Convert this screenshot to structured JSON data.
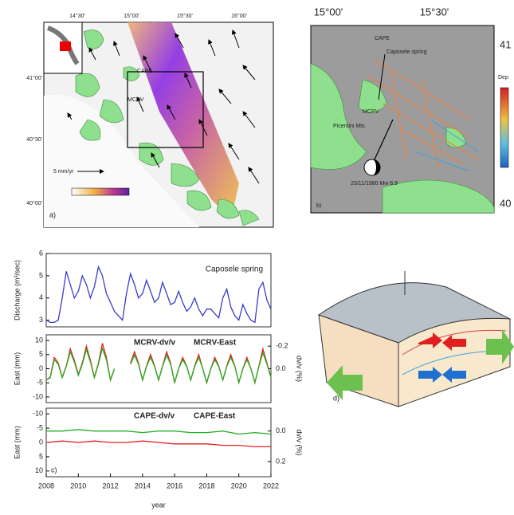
{
  "map_a": {
    "lon_labels": [
      "14°30'",
      "15°00'",
      "15°30'",
      "16°00'"
    ],
    "lat_labels": [
      "41°00'",
      "40°30'",
      "40°00'"
    ],
    "stations": [
      "CAPE",
      "MCRV"
    ],
    "scale": "5 mm/yr",
    "panel_label": "a)"
  },
  "map_b": {
    "lon_labels": [
      "15°00'",
      "15°30'"
    ],
    "lat_labels": [
      "41",
      "40"
    ],
    "stations": [
      "CAPE",
      "MCRV"
    ],
    "spring": "Caposele spring",
    "mountains": "Picentini Mts.",
    "event": "23/11/1980 Mw 6.9",
    "colorbar_label": "Dep",
    "panel_label": "b)"
  },
  "diagram_d": {
    "panel_label": "d)"
  },
  "chart_data": [
    {
      "type": "line",
      "ylabel": "Discharge (m³/sec)",
      "xlim": [
        2008,
        2022
      ],
      "ylim": [
        2.7,
        6.0
      ],
      "yticks": [
        3,
        4,
        5,
        6
      ],
      "x": [
        2008,
        2008.25,
        2008.5,
        2008.75,
        2009,
        2009.25,
        2009.5,
        2009.75,
        2010,
        2010.25,
        2010.5,
        2010.75,
        2011,
        2011.25,
        2011.5,
        2011.75,
        2012,
        2012.25,
        2012.5,
        2012.75,
        2013,
        2013.25,
        2013.5,
        2013.75,
        2014,
        2014.25,
        2014.5,
        2014.75,
        2015,
        2015.25,
        2015.5,
        2015.75,
        2016,
        2016.25,
        2016.5,
        2016.75,
        2017,
        2017.25,
        2017.5,
        2017.75,
        2018,
        2018.25,
        2018.5,
        2018.75,
        2019,
        2019.25,
        2019.5,
        2019.75,
        2020,
        2020.25,
        2020.5,
        2020.75,
        2021,
        2021.25,
        2021.5,
        2021.75,
        2022
      ],
      "series": [
        {
          "name": "Caposele spring",
          "color": "#3a3acc",
          "values": [
            3.0,
            2.9,
            2.9,
            3.0,
            4.0,
            5.2,
            4.6,
            4.0,
            4.3,
            5.0,
            4.6,
            4.0,
            4.5,
            5.4,
            5.0,
            4.2,
            3.8,
            3.4,
            3.2,
            3.0,
            4.2,
            5.1,
            4.6,
            4.0,
            4.2,
            4.8,
            4.3,
            3.8,
            4.0,
            4.7,
            4.2,
            3.7,
            3.8,
            4.3,
            3.8,
            3.4,
            3.6,
            4.0,
            3.5,
            3.2,
            3.5,
            3.5,
            3.3,
            3.1,
            4.0,
            4.4,
            3.6,
            3.2,
            3.0,
            3.7,
            3.3,
            3.0,
            2.9,
            4.4,
            4.7,
            3.9,
            3.5
          ]
        }
      ]
    },
    {
      "type": "line",
      "ylabel": "East (mm)",
      "y2label": "dv/v (%)",
      "xlim": [
        2008,
        2022
      ],
      "ylim": [
        -12,
        12
      ],
      "yticks": [
        10,
        5,
        0,
        -5,
        -10
      ],
      "y2lim": [
        0.3,
        -0.3
      ],
      "y2ticks": [
        {
          "value": -0.2,
          "label": "-0.2"
        },
        {
          "value": 0,
          "label": "0.0"
        }
      ],
      "x": [
        2008,
        2008.25,
        2008.5,
        2008.75,
        2009,
        2009.25,
        2009.5,
        2009.75,
        2010,
        2010.25,
        2010.5,
        2010.75,
        2011,
        2011.25,
        2011.5,
        2011.75,
        2012,
        2012.25,
        2012.5,
        2012.75,
        2013,
        2013.25,
        2013.5,
        2013.75,
        2014,
        2014.25,
        2014.5,
        2014.75,
        2015,
        2015.25,
        2015.5,
        2015.75,
        2016,
        2016.25,
        2016.5,
        2016.75,
        2017,
        2017.25,
        2017.5,
        2017.75,
        2018,
        2018.25,
        2018.5,
        2018.75,
        2019,
        2019.25,
        2019.5,
        2019.75,
        2020,
        2020.25,
        2020.5,
        2020.75,
        2021,
        2021.25,
        2021.5,
        2021.75,
        2022
      ],
      "series": [
        {
          "name": "MCRV-East",
          "color": "#e02020",
          "values": [
            -4,
            -3,
            4,
            2,
            -3,
            1,
            7,
            3,
            -2,
            2,
            8,
            3,
            -3,
            2,
            9,
            4,
            -4,
            0,
            null,
            null,
            null,
            2,
            6,
            2,
            -4,
            1,
            5,
            1,
            -4,
            1,
            6,
            2,
            -5,
            0,
            4,
            1,
            -4,
            1,
            5,
            0,
            -5,
            0,
            4,
            1,
            -4,
            1,
            5,
            1,
            -5,
            0,
            4,
            0,
            -5,
            1,
            7,
            2,
            -3
          ]
        },
        {
          "name": "MCRV-dv/v",
          "color": "#22b022",
          "axis": "y2",
          "values": [
            0.1,
            0.08,
            -0.08,
            -0.04,
            0.08,
            -0.02,
            -0.15,
            -0.06,
            0.06,
            -0.04,
            -0.17,
            -0.06,
            0.08,
            -0.04,
            -0.18,
            -0.08,
            0.1,
            0.0,
            null,
            null,
            null,
            -0.04,
            -0.12,
            -0.04,
            0.1,
            -0.02,
            -0.1,
            -0.02,
            0.1,
            -0.02,
            -0.12,
            -0.04,
            0.12,
            0.0,
            -0.08,
            -0.02,
            0.1,
            -0.02,
            -0.1,
            0.0,
            0.12,
            0.0,
            -0.08,
            -0.02,
            0.1,
            -0.02,
            -0.1,
            -0.02,
            0.12,
            0.0,
            -0.08,
            0.0,
            0.12,
            -0.02,
            -0.14,
            -0.04,
            0.08
          ]
        }
      ]
    },
    {
      "type": "line",
      "ylabel": "East (mm)",
      "y2label": "dv/v (%)",
      "xlabel": "year",
      "panel_label": "c)",
      "xlim": [
        2008,
        2022
      ],
      "xticks": [
        2008,
        2010,
        2012,
        2014,
        2016,
        2018,
        2020,
        2022
      ],
      "ylim": [
        12,
        -12
      ],
      "yticks": [
        -10,
        -5,
        0,
        5,
        10
      ],
      "y2lim": [
        0.3,
        -0.15
      ],
      "y2ticks": [
        {
          "value": 0,
          "label": "0.0"
        },
        0.2
      ],
      "x": [
        2008,
        2009,
        2010,
        2011,
        2012,
        2013,
        2014,
        2015,
        2016,
        2017,
        2018,
        2019,
        2020,
        2021,
        2022
      ],
      "series": [
        {
          "name": "CAPE-East",
          "color": "#e02020",
          "values": [
            0,
            -0.5,
            0,
            -0.5,
            0,
            0,
            -0.5,
            0,
            0.5,
            0.5,
            0.5,
            1,
            1,
            1.5,
            1.5
          ]
        },
        {
          "name": "CAPE-dv/v",
          "color": "#22b022",
          "axis": "y2",
          "values": [
            0.0,
            0.0,
            -0.01,
            0.0,
            0.0,
            0.0,
            0.01,
            0.0,
            0.0,
            0.01,
            0.01,
            0.0,
            0.02,
            0.01,
            0.02
          ]
        }
      ]
    }
  ]
}
